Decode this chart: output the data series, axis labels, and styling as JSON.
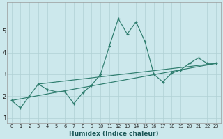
{
  "xlabel": "Humidex (Indice chaleur)",
  "background_color": "#cce8ec",
  "grid_color": "#b0d0d4",
  "line_color": "#2e7d6e",
  "xlim": [
    -0.5,
    23.5
  ],
  "ylim": [
    0.75,
    6.3
  ],
  "xticks": [
    0,
    1,
    2,
    3,
    4,
    5,
    6,
    7,
    8,
    9,
    10,
    11,
    12,
    13,
    14,
    15,
    16,
    17,
    18,
    19,
    20,
    21,
    22,
    23
  ],
  "yticks": [
    1,
    2,
    3,
    4,
    5
  ],
  "x": [
    0,
    1,
    2,
    3,
    4,
    5,
    6,
    7,
    8,
    9,
    10,
    11,
    12,
    13,
    14,
    15,
    16,
    17,
    18,
    19,
    20,
    21,
    22,
    23
  ],
  "y_main": [
    1.8,
    1.45,
    2.0,
    2.55,
    2.3,
    2.2,
    2.2,
    1.65,
    2.15,
    2.5,
    3.0,
    4.3,
    5.55,
    4.85,
    5.4,
    4.5,
    3.0,
    2.65,
    3.05,
    3.2,
    3.5,
    3.75,
    3.5,
    3.5
  ],
  "trend1_x": [
    0,
    23
  ],
  "trend1_y": [
    1.8,
    3.5
  ],
  "trend2_x": [
    3,
    23
  ],
  "trend2_y": [
    2.55,
    3.5
  ]
}
